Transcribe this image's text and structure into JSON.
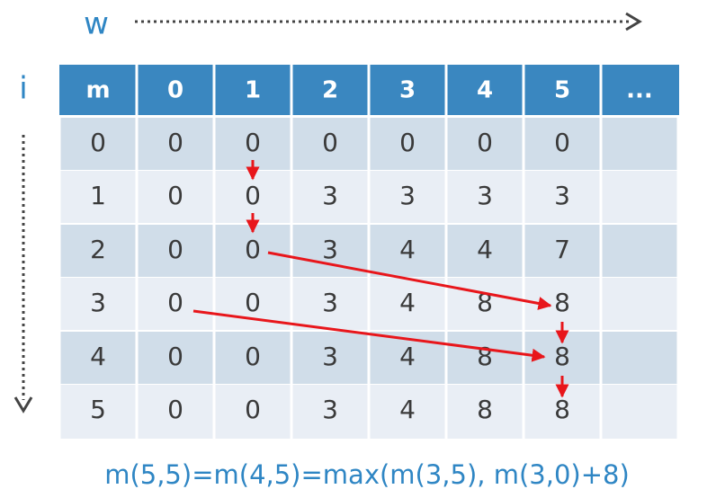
{
  "w_label": "w",
  "i_label": "i",
  "table": {
    "header": [
      "m",
      "0",
      "1",
      "2",
      "3",
      "4",
      "5",
      "..."
    ],
    "rows": [
      [
        0,
        0,
        0,
        0,
        0,
        0,
        0
      ],
      [
        1,
        0,
        0,
        3,
        3,
        3,
        3
      ],
      [
        2,
        0,
        0,
        3,
        4,
        4,
        7
      ],
      [
        3,
        0,
        0,
        3,
        4,
        8,
        8
      ],
      [
        4,
        0,
        0,
        3,
        4,
        8,
        8
      ],
      [
        5,
        0,
        0,
        3,
        4,
        8,
        8
      ]
    ]
  },
  "formula": "m(5,5)=m(4,5)=max(m(3,5), m(3,0)+8)"
}
